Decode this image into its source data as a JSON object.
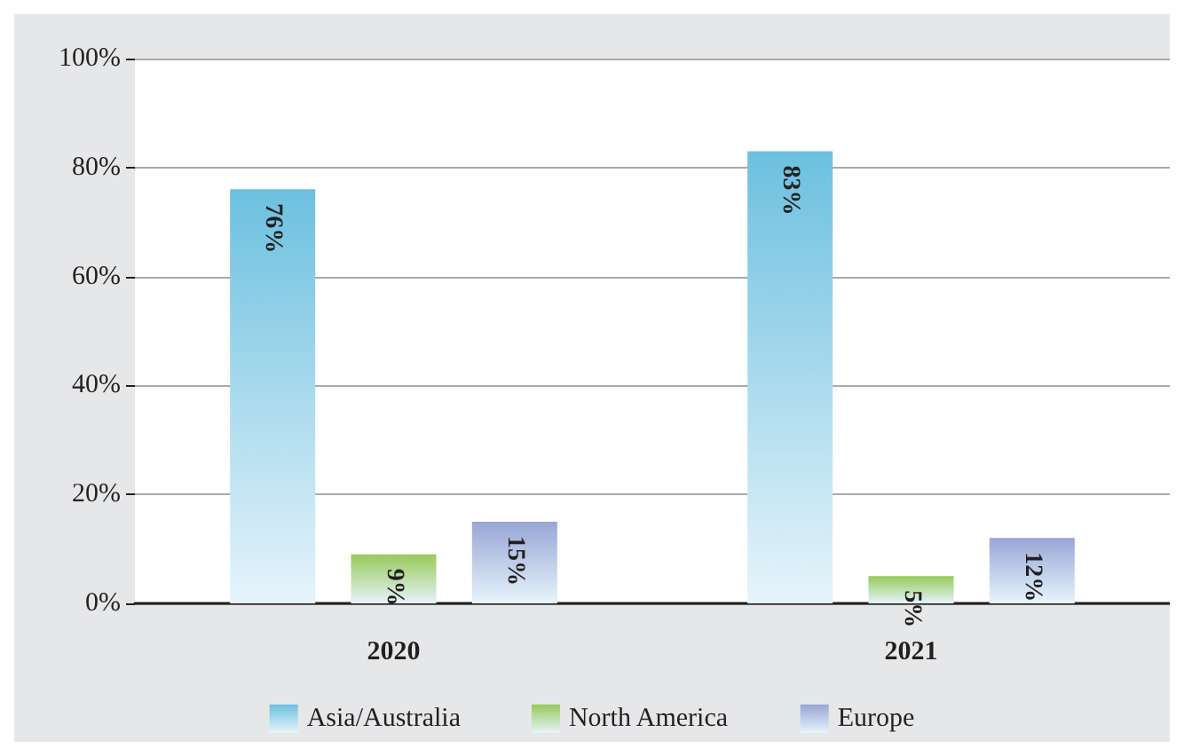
{
  "chart_data": {
    "type": "bar",
    "categories": [
      "2020",
      "2021"
    ],
    "series": [
      {
        "name": "Asia/Australia",
        "color": "#6cc0df",
        "values": [
          76,
          83
        ],
        "value_labels": [
          "76%",
          "83%"
        ]
      },
      {
        "name": "North America",
        "color": "#97c95a",
        "values": [
          9,
          5
        ],
        "value_labels": [
          "9%",
          "5%"
        ]
      },
      {
        "name": "Europe",
        "color": "#98a6d6",
        "values": [
          15,
          12
        ],
        "value_labels": [
          "15%",
          "12%"
        ]
      }
    ],
    "ylim": [
      0,
      100
    ],
    "yticks": [
      {
        "value": 0,
        "label": "0%"
      },
      {
        "value": 20,
        "label": "20%"
      },
      {
        "value": 40,
        "label": "40%"
      },
      {
        "value": 60,
        "label": "60%"
      },
      {
        "value": 80,
        "label": "80%"
      },
      {
        "value": 100,
        "label": "100%"
      }
    ],
    "grid": "y",
    "legend": "bottom"
  }
}
